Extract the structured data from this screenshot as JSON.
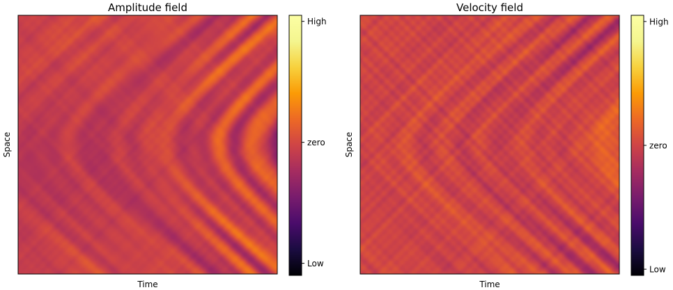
{
  "chart_data": [
    {
      "type": "heatmap",
      "title": "Amplitude field",
      "xlabel": "Time",
      "ylabel": "Space",
      "colormap": "inferno",
      "colorbar": {
        "ticks": [
          {
            "label": "High",
            "value": 1.0
          },
          {
            "label": "zero",
            "value": 0.0
          },
          {
            "label": "Low",
            "value": -1.0
          }
        ],
        "range": [
          -1.1,
          1.05
        ]
      },
      "grid": false
    },
    {
      "type": "heatmap",
      "title": "Velocity field",
      "xlabel": "Time",
      "ylabel": "Space",
      "colormap": "inferno",
      "colorbar": {
        "ticks": [
          {
            "label": "High",
            "value": 1.0
          },
          {
            "label": "zero",
            "value": 0.0
          },
          {
            "label": "Low",
            "value": -1.0
          }
        ],
        "range": [
          -1.05,
          1.05
        ]
      },
      "grid": false
    }
  ]
}
